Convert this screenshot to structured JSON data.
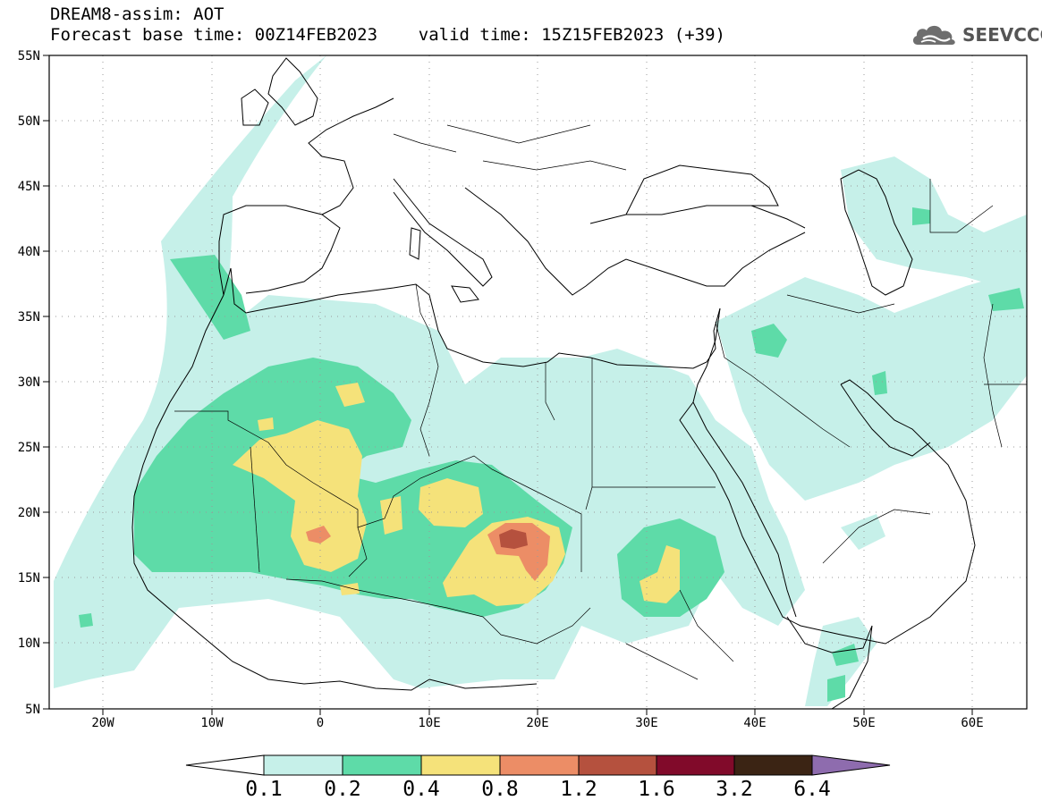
{
  "header": {
    "line1": "DREAM8-assim: AOT",
    "line2": "Forecast base time: 00Z14FEB2023    valid time: 15Z15FEB2023 (+39)"
  },
  "logo": {
    "text": "SEEVCCC",
    "icon": "cloud-icon"
  },
  "map": {
    "lon_range": [
      -25,
      65
    ],
    "lat_range": [
      5,
      55
    ],
    "lon_ticks": [
      "20W",
      "10W",
      "0",
      "10E",
      "20E",
      "30E",
      "40E",
      "50E",
      "60E"
    ],
    "lat_ticks": [
      "55N",
      "50N",
      "45N",
      "40N",
      "35N",
      "30N",
      "25N",
      "20N",
      "15N",
      "10N",
      "5N"
    ]
  },
  "colorbar": {
    "labels": [
      "0.1",
      "0.2",
      "0.4",
      "0.8",
      "1.2",
      "1.6",
      "3.2",
      "6.4"
    ],
    "colors": [
      "#ffffff",
      "#c6f0e9",
      "#5edba8",
      "#f5e27a",
      "#ec8d66",
      "#b5513e",
      "#810a2a",
      "#3b2414",
      "#8e6cae"
    ]
  }
}
